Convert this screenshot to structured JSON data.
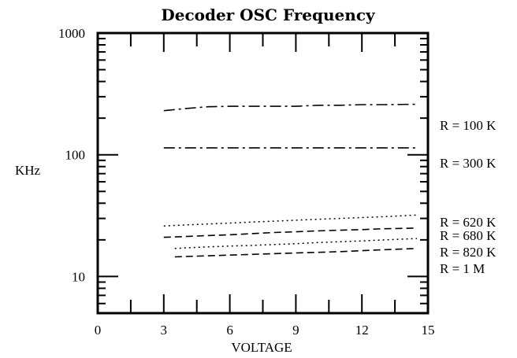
{
  "chart_data": {
    "type": "line",
    "title": "Decoder OSC Frequency",
    "xlabel": "VOLTAGE",
    "ylabel": "KHz",
    "xlim": [
      0,
      15
    ],
    "ylim": [
      5,
      1000
    ],
    "yscale": "log",
    "x_ticks": [
      "0",
      "3",
      "6",
      "9",
      "12",
      "15"
    ],
    "y_ticks": [
      "10",
      "100",
      "1000"
    ],
    "grid": false,
    "series": [
      {
        "name": "R = 100 K",
        "dash": "dashdot",
        "x": [
          3,
          4,
          5,
          6,
          7,
          8,
          9,
          10,
          11,
          12,
          13,
          14.5
        ],
        "y": [
          230,
          240,
          248,
          250,
          250,
          250,
          250,
          255,
          255,
          258,
          258,
          260
        ]
      },
      {
        "name": "R = 300 K",
        "dash": "dashdot",
        "x": [
          3,
          4,
          5,
          6,
          7,
          8,
          9,
          10,
          11,
          12,
          13,
          14.5
        ],
        "y": [
          114,
          114,
          114,
          114,
          114,
          114,
          114,
          114,
          114,
          114,
          114,
          114
        ]
      },
      {
        "name": "R = 620 K",
        "dash": "dotted",
        "x": [
          3,
          4,
          5,
          6,
          7,
          8,
          9,
          10,
          11,
          12,
          13,
          14.5
        ],
        "y": [
          26,
          26.5,
          27,
          27.5,
          28,
          28.5,
          29,
          29.5,
          30,
          30.5,
          31,
          32
        ]
      },
      {
        "name": "R = 680 K",
        "dash": "dashed",
        "x": [
          3,
          4,
          5,
          6,
          7,
          8,
          9,
          10,
          11,
          12,
          13,
          14.5
        ],
        "y": [
          21,
          21.3,
          21.7,
          22,
          22.5,
          23,
          23.3,
          23.7,
          24,
          24.3,
          24.7,
          25
        ]
      },
      {
        "name": "R = 820 K",
        "dash": "dotted",
        "x": [
          3.5,
          4,
          5,
          6,
          7,
          8,
          9,
          10,
          11,
          12,
          13,
          14.5
        ],
        "y": [
          17,
          17.2,
          17.5,
          17.8,
          18,
          18.3,
          18.6,
          19,
          19.3,
          19.6,
          20,
          20.5
        ]
      },
      {
        "name": "R = 1 M",
        "dash": "dashed",
        "x": [
          3.5,
          4,
          5,
          6,
          7,
          8,
          9,
          10,
          11,
          12,
          13,
          14.5
        ],
        "y": [
          14.5,
          14.6,
          14.8,
          15,
          15.2,
          15.4,
          15.6,
          15.8,
          16,
          16.3,
          16.6,
          17
        ]
      }
    ]
  }
}
